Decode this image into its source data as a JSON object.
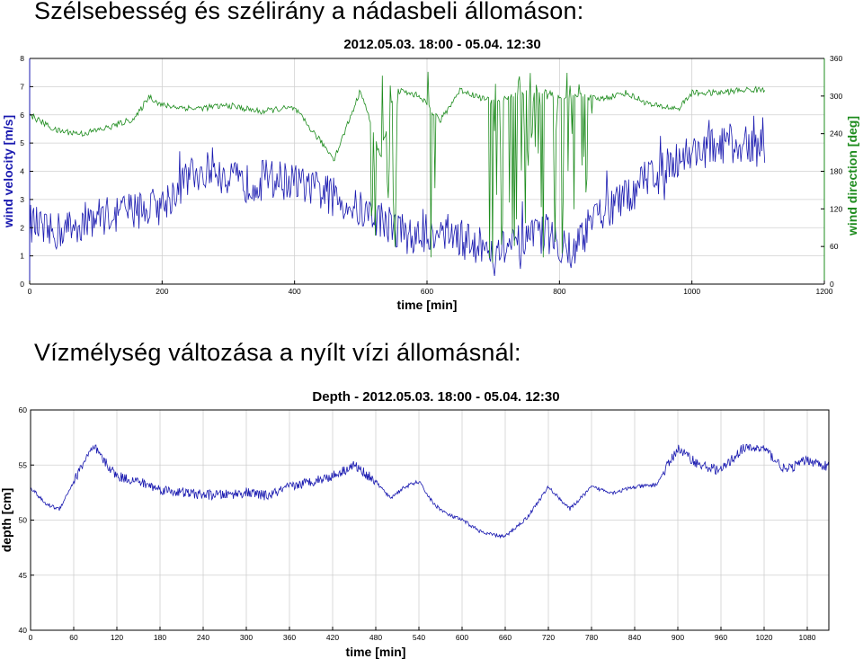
{
  "headings": {
    "wind": "Szélsebesség és szélirány a nádasbeli állomáson:",
    "depth": "Vízmélység változása a nyílt vízi állomásnál:"
  },
  "colors": {
    "blue": "#1a1ab0",
    "green": "#1e8c1e",
    "frame": "#000000",
    "grid": "#d0d0d0"
  },
  "chart_data": [
    {
      "type": "line",
      "title": "2012.05.03. 18:00 - 05.04. 12:30",
      "xlabel": "time [min]",
      "ylabel": "wind velocity [m/s]",
      "y2label": "wind direction [deg]",
      "xlim": [
        0,
        1200
      ],
      "ylim": [
        0,
        8
      ],
      "y2lim": [
        0,
        360
      ],
      "xticks": [
        0,
        200,
        400,
        600,
        800,
        1000,
        1200
      ],
      "yticks": [
        0,
        1,
        2,
        3,
        4,
        5,
        6,
        7,
        8
      ],
      "y2ticks": [
        0,
        60,
        120,
        180,
        240,
        300,
        360
      ],
      "grid": true,
      "series": [
        {
          "name": "wind velocity",
          "axis": "left",
          "color": "#1a1ab0",
          "x": [
            0,
            30,
            60,
            100,
            150,
            200,
            240,
            280,
            320,
            360,
            400,
            450,
            500,
            540,
            580,
            620,
            660,
            700,
            740,
            780,
            820,
            860,
            900,
            940,
            980,
            1020,
            1060,
            1100,
            1110
          ],
          "values": [
            2.2,
            1.8,
            2.0,
            2.4,
            2.6,
            2.8,
            3.8,
            4.2,
            3.5,
            3.8,
            3.6,
            3.2,
            2.6,
            2.2,
            1.6,
            2.0,
            1.5,
            1.2,
            1.4,
            1.8,
            1.2,
            2.5,
            3.0,
            4.0,
            4.5,
            4.8,
            5.0,
            4.8,
            5.0
          ]
        },
        {
          "name": "wind direction",
          "axis": "right",
          "color": "#1e8c1e",
          "x": [
            0,
            40,
            80,
            120,
            160,
            180,
            200,
            250,
            300,
            350,
            380,
            400,
            460,
            500,
            530,
            550,
            590,
            620,
            650,
            700,
            760,
            800,
            830,
            860,
            900,
            940,
            980,
            1000,
            1040,
            1080,
            1110
          ],
          "values": [
            270,
            245,
            240,
            250,
            265,
            300,
            285,
            280,
            285,
            275,
            280,
            280,
            200,
            310,
            200,
            310,
            300,
            260,
            310,
            290,
            310,
            300,
            300,
            295,
            305,
            285,
            280,
            305,
            305,
            310,
            310
          ]
        }
      ]
    },
    {
      "type": "line",
      "title": "Depth - 2012.05.03. 18:00 - 05.04. 12:30",
      "xlabel": "time [min]",
      "ylabel": "depth [cm]",
      "xlim": [
        0,
        1110
      ],
      "ylim": [
        40,
        60
      ],
      "xticks": [
        0,
        60,
        120,
        180,
        240,
        300,
        360,
        420,
        480,
        540,
        600,
        660,
        720,
        780,
        840,
        900,
        960,
        1020,
        1080
      ],
      "yticks": [
        40,
        45,
        50,
        55,
        60
      ],
      "grid": true,
      "series": [
        {
          "name": "depth",
          "color": "#1a1ab0",
          "x": [
            0,
            20,
            40,
            60,
            80,
            90,
            100,
            120,
            150,
            180,
            210,
            240,
            270,
            300,
            330,
            360,
            390,
            420,
            450,
            480,
            500,
            520,
            540,
            560,
            580,
            600,
            630,
            660,
            690,
            720,
            750,
            780,
            810,
            840,
            870,
            900,
            930,
            960,
            990,
            1020,
            1050,
            1080,
            1110
          ],
          "values": [
            53.0,
            51.5,
            51.0,
            53.5,
            56.0,
            56.5,
            55.5,
            54.0,
            53.5,
            52.8,
            52.5,
            52.3,
            52.3,
            52.5,
            52.2,
            53.0,
            53.5,
            54.0,
            55.0,
            53.5,
            52.0,
            53.0,
            53.5,
            51.5,
            50.5,
            50.0,
            48.8,
            48.5,
            50.2,
            53.0,
            51.0,
            53.0,
            52.5,
            53.0,
            53.2,
            56.5,
            55.0,
            54.5,
            56.5,
            56.5,
            54.5,
            55.5,
            54.8
          ]
        }
      ]
    }
  ]
}
